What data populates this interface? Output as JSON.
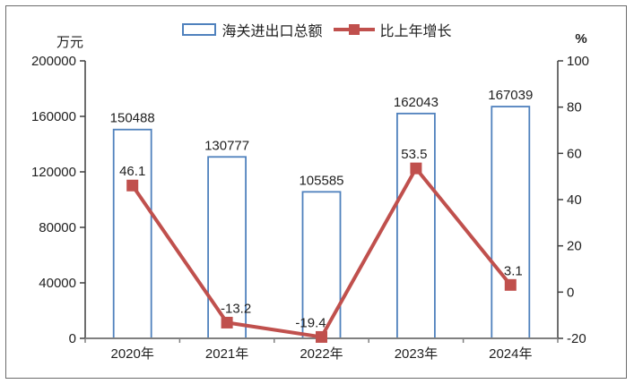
{
  "chart_data": {
    "type": "bar",
    "subtype": "bar-line-combo",
    "categories": [
      "2020年",
      "2021年",
      "2022年",
      "2023年",
      "2024年"
    ],
    "series": [
      {
        "name": "海关进出口总额",
        "type": "bar",
        "axis": "left",
        "values": [
          150488,
          130777,
          105585,
          162043,
          167039
        ],
        "labels": [
          "150488",
          "130777",
          "105585",
          "162043",
          "167039"
        ],
        "border_color": "#4F81BD",
        "fill": "#FFFFFF"
      },
      {
        "name": "比上年增长",
        "type": "line",
        "axis": "right",
        "values": [
          46.1,
          -13.2,
          -19.4,
          53.5,
          3.1
        ],
        "labels": [
          "46.1",
          "-13.2",
          "-19.4",
          "53.5",
          "3.1"
        ],
        "color": "#C0504D",
        "marker": "square"
      }
    ],
    "left_axis": {
      "unit": "万元",
      "min": 0,
      "max": 200000,
      "step": 40000,
      "tick_labels": [
        "0",
        "40000",
        "80000",
        "120000",
        "160000",
        "200000"
      ]
    },
    "right_axis": {
      "unit": "%",
      "min": -20,
      "max": 100,
      "step": 20,
      "tick_labels": [
        "-20",
        "0",
        "20",
        "40",
        "60",
        "80",
        "100"
      ]
    },
    "legend_position": "top",
    "grid": false,
    "title": ""
  }
}
